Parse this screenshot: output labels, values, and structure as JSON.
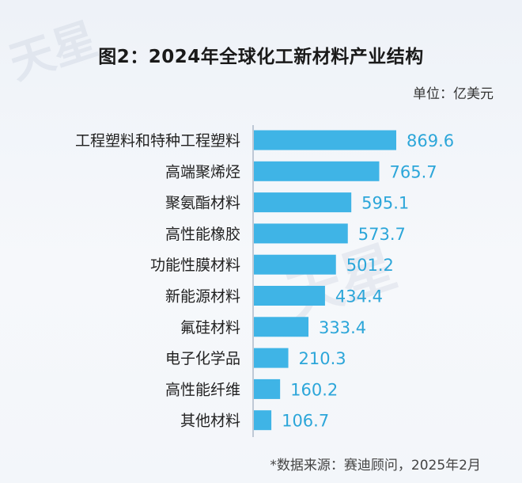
{
  "title": "图2：2024年全球化工新材料产业结构",
  "unit": "单位：亿美元",
  "source": "*数据来源：赛迪顾问，2025年2月",
  "colors": {
    "bar": "#3fb4e6",
    "value_text": "#2ca6d9",
    "axis": "#8a9bb0"
  },
  "chart_data": {
    "type": "bar",
    "orientation": "horizontal",
    "title": "图2：2024年全球化工新材料产业结构",
    "categories": [
      "工程塑料和特种工程塑料",
      "高端聚烯烃",
      "聚氨酯材料",
      "高性能橡胶",
      "功能性膜材料",
      "新能源材料",
      "氟硅材料",
      "电子化学品",
      "高性能纤维",
      "其他材料"
    ],
    "values": [
      869.6,
      765.7,
      595.1,
      573.7,
      501.2,
      434.4,
      333.4,
      210.3,
      160.2,
      106.7
    ],
    "value_labels": [
      "869.6",
      "765.7",
      "595.1",
      "573.7",
      "501.2",
      "434.4",
      "333.4",
      "210.3",
      "160.2",
      "106.7"
    ],
    "unit": "单位：亿美元",
    "xlim": [
      0,
      869.6
    ],
    "grid": false,
    "legend": "none"
  }
}
